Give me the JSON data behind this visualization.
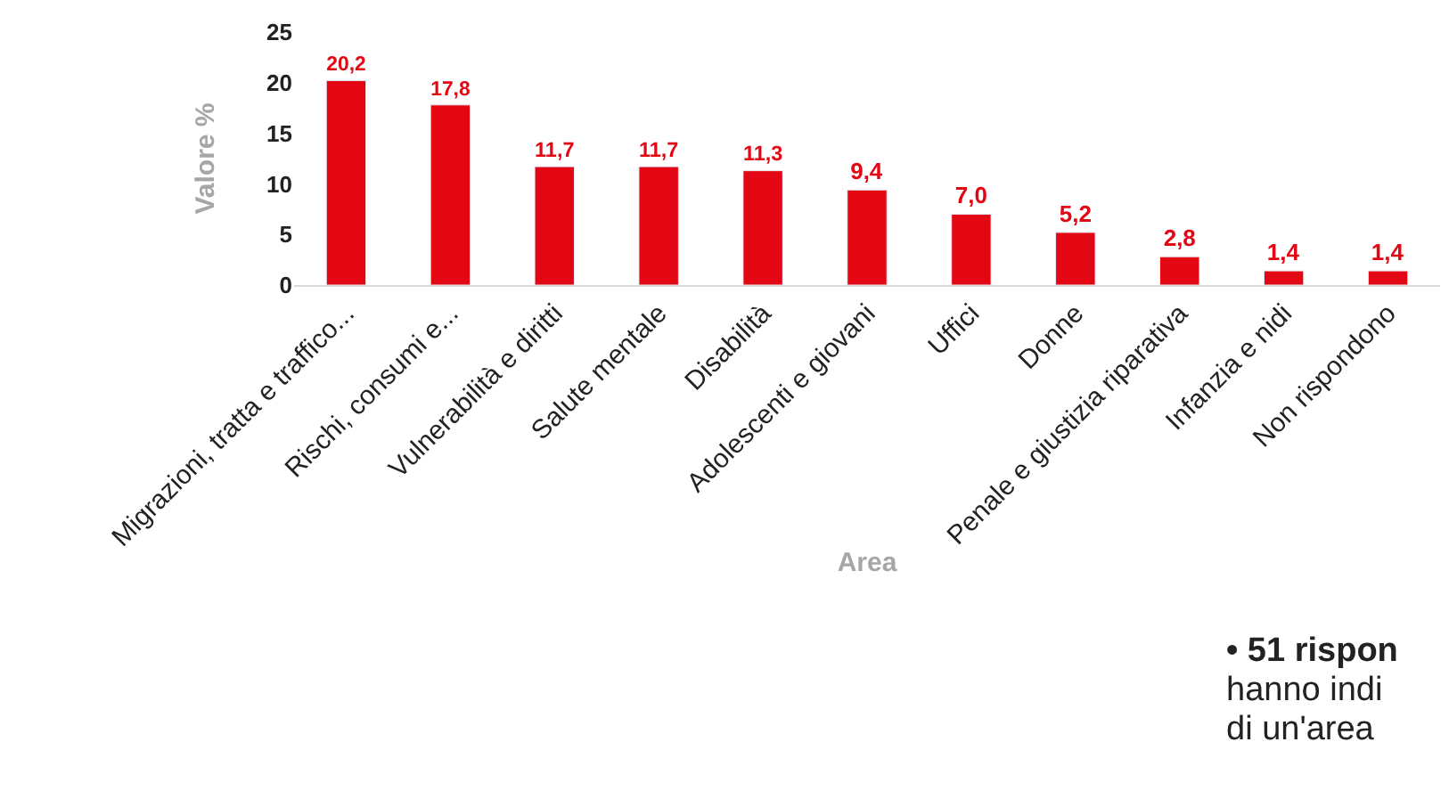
{
  "chart_data": {
    "type": "bar",
    "xlabel": "Area",
    "ylabel": "Valore %",
    "categories": [
      "Migrazioni, tratta e traffico...",
      "Rischi, consumi e...",
      "Vulnerabilità e diritti",
      "Salute mentale",
      "Disabilità",
      "Adolescenti e giovani",
      "Uffici",
      "Donne",
      "Penale e giustizia riparativa",
      "Infanzia e nidi",
      "Non rispondono"
    ],
    "values": [
      20.2,
      17.8,
      11.7,
      11.7,
      11.3,
      9.4,
      7.0,
      5.2,
      2.8,
      1.4,
      1.4
    ],
    "value_labels": [
      "20,2",
      "17,8",
      "11,7",
      "11,7",
      "11,3",
      "9,4",
      "7,0",
      "5,2",
      "2,8",
      "1,4",
      "1,4"
    ],
    "color": "#e30613",
    "ylim": [
      0,
      25
    ],
    "yticks": [
      0,
      5,
      10,
      15,
      20,
      25
    ],
    "annotations": [
      "• 51 rispon",
      "hanno indi",
      "di un'area"
    ]
  }
}
